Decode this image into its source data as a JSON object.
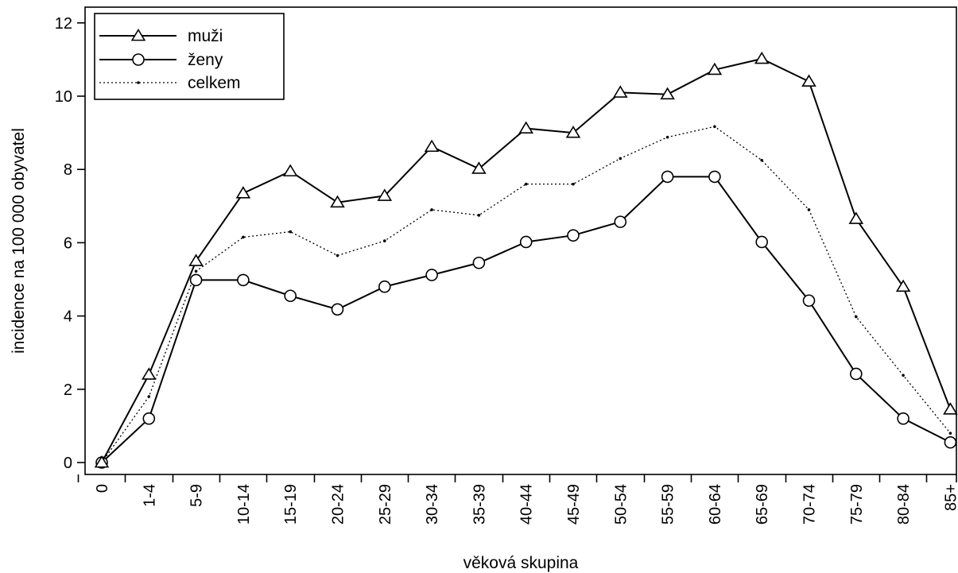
{
  "chart_data": {
    "type": "line",
    "title": "",
    "xlabel": "věková skupina",
    "ylabel": "incidence na 100 000 obyvatel",
    "ylim": [
      0,
      12
    ],
    "yticks": [
      0,
      2,
      4,
      6,
      8,
      10,
      12
    ],
    "grid": false,
    "legend_position": "top-left",
    "categories": [
      "0",
      "1-4",
      "5-9",
      "10-14",
      "15-19",
      "20-24",
      "25-29",
      "30-34",
      "35-39",
      "40-44",
      "45-49",
      "50-54",
      "55-59",
      "60-64",
      "65-69",
      "70-74",
      "75-79",
      "80-84",
      "85+"
    ],
    "series": [
      {
        "name": "muži",
        "marker": "triangle",
        "line": "solid",
        "values": [
          0.0,
          2.4,
          5.5,
          7.35,
          7.95,
          7.1,
          7.28,
          8.62,
          8.02,
          9.12,
          9.0,
          10.1,
          10.05,
          10.72,
          11.02,
          10.4,
          6.65,
          4.8,
          1.45
        ]
      },
      {
        "name": "ženy",
        "marker": "circle",
        "line": "solid",
        "values": [
          0.0,
          1.2,
          4.98,
          4.98,
          4.55,
          4.18,
          4.8,
          5.12,
          5.45,
          6.02,
          6.2,
          6.57,
          7.8,
          7.8,
          6.02,
          4.42,
          2.42,
          1.2,
          0.55
        ]
      },
      {
        "name": "celkem",
        "marker": "dot",
        "line": "dotted",
        "values": [
          0.0,
          1.8,
          5.22,
          6.15,
          6.3,
          5.65,
          6.05,
          6.9,
          6.75,
          7.6,
          7.6,
          8.3,
          8.88,
          9.17,
          8.25,
          6.9,
          3.98,
          2.38,
          0.8
        ]
      }
    ]
  }
}
